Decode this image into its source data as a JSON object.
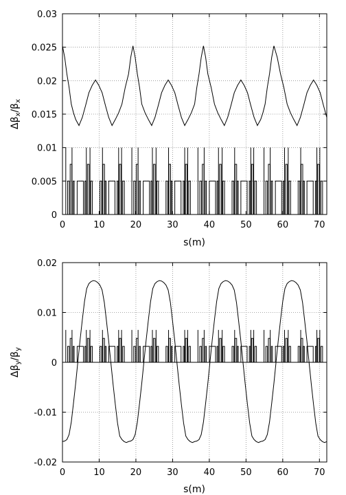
{
  "chart_data": [
    {
      "type": "line",
      "xlabel": "s(m)",
      "ylabel": "Δβx/βx",
      "ylabel_parts": {
        "main": "Δβ",
        "sub1": "x",
        "mid": "/β",
        "sub2": "x"
      },
      "xlim": [
        0,
        72
      ],
      "ylim": [
        0,
        0.03
      ],
      "grid": true,
      "xticks": [
        0,
        10,
        20,
        30,
        40,
        50,
        60,
        70
      ],
      "xtick_labels": [
        "0",
        "10",
        "20",
        "30",
        "40",
        "50",
        "60",
        "70"
      ],
      "yticks": [
        0,
        0.005,
        0.01,
        0.015,
        0.02,
        0.025,
        0.03
      ],
      "ytick_labels": [
        "0",
        "0.005",
        "0.01",
        "0.015",
        "0.02",
        "0.025",
        "0.03"
      ],
      "series": [
        {
          "style": "solid-line",
          "x": [
            0,
            0.6,
            1.2,
            1.8,
            2.4,
            3.0,
            3.6,
            4.5,
            5.4,
            6.3,
            7.2,
            8.1,
            9.0,
            9.9,
            10.8,
            11.7,
            12.6,
            13.5,
            14.4,
            15.3,
            16.2,
            17.1,
            18.0,
            18.6,
            19.2,
            19.8,
            20.4,
            21.0,
            21.6,
            22.5,
            23.4,
            24.3,
            25.2,
            26.1,
            27.0,
            27.9,
            28.8,
            29.7,
            30.6,
            31.5,
            32.4,
            33.3,
            34.2,
            35.1,
            36.0,
            36.6,
            37.2,
            37.8,
            38.4,
            39.0,
            39.6,
            40.5,
            41.4,
            42.3,
            43.2,
            44.1,
            45.0,
            45.9,
            46.8,
            47.7,
            48.6,
            49.5,
            50.4,
            51.3,
            52.2,
            53.1,
            54.0,
            54.6,
            55.2,
            55.8,
            56.4,
            57.0,
            57.6,
            58.5,
            59.4,
            60.3,
            61.2,
            62.1,
            63.0,
            63.9,
            64.8,
            65.7,
            66.6,
            67.5,
            68.4,
            69.3,
            70.2,
            71.1,
            72.0
          ],
          "y": [
            0.0252,
            0.0235,
            0.021,
            0.019,
            0.0165,
            0.0152,
            0.0142,
            0.0133,
            0.0145,
            0.0163,
            0.0182,
            0.0193,
            0.0201,
            0.0193,
            0.0182,
            0.0163,
            0.0145,
            0.0133,
            0.0142,
            0.0152,
            0.0165,
            0.019,
            0.021,
            0.0235,
            0.0252,
            0.0235,
            0.021,
            0.019,
            0.0165,
            0.0152,
            0.0142,
            0.0133,
            0.0145,
            0.0163,
            0.0182,
            0.0193,
            0.0201,
            0.0193,
            0.0182,
            0.0163,
            0.0145,
            0.0133,
            0.0142,
            0.0152,
            0.0165,
            0.019,
            0.021,
            0.0235,
            0.0252,
            0.0235,
            0.021,
            0.019,
            0.0165,
            0.0152,
            0.0142,
            0.0133,
            0.0145,
            0.0163,
            0.0182,
            0.0193,
            0.0201,
            0.0193,
            0.0182,
            0.0163,
            0.0145,
            0.0133,
            0.0142,
            0.0152,
            0.0165,
            0.019,
            0.021,
            0.0235,
            0.0252,
            0.0235,
            0.021,
            0.019,
            0.0165,
            0.0152,
            0.0142,
            0.0133,
            0.0145,
            0.0163,
            0.0182,
            0.0193,
            0.0201,
            0.0193,
            0.0182,
            0.0163,
            0.0145
          ]
        },
        {
          "style": "lattice-elements",
          "cell_length": 18,
          "cells": 4,
          "elements": [
            {
              "kind": "spike",
              "s": 0.9,
              "h": 0.01
            },
            {
              "kind": "box",
              "s": 1.4,
              "w": 0.45,
              "h": 0.005
            },
            {
              "kind": "box",
              "s": 2.1,
              "w": 0.45,
              "h": 0.0075
            },
            {
              "kind": "spike",
              "s": 2.6,
              "h": 0.01
            },
            {
              "kind": "box",
              "s": 2.9,
              "w": 0.3,
              "h": 0.005
            },
            {
              "kind": "box",
              "s": 4.0,
              "w": 1.7,
              "h": 0.005
            },
            {
              "kind": "box",
              "s": 6.1,
              "w": 0.3,
              "h": 0.005
            },
            {
              "kind": "spike",
              "s": 6.5,
              "h": 0.01
            },
            {
              "kind": "box",
              "s": 6.8,
              "w": 0.45,
              "h": 0.0075
            },
            {
              "kind": "spike",
              "s": 7.5,
              "h": 0.01
            },
            {
              "kind": "box",
              "s": 7.7,
              "w": 0.45,
              "h": 0.005
            },
            {
              "kind": "box",
              "s": 10.2,
              "w": 0.45,
              "h": 0.005
            },
            {
              "kind": "spike",
              "s": 10.9,
              "h": 0.01
            },
            {
              "kind": "box",
              "s": 11.0,
              "w": 0.45,
              "h": 0.0075
            },
            {
              "kind": "box",
              "s": 11.6,
              "w": 0.3,
              "h": 0.005
            },
            {
              "kind": "box",
              "s": 12.6,
              "w": 1.7,
              "h": 0.005
            },
            {
              "kind": "box",
              "s": 14.9,
              "w": 0.3,
              "h": 0.005
            },
            {
              "kind": "spike",
              "s": 15.3,
              "h": 0.01
            },
            {
              "kind": "box",
              "s": 15.5,
              "w": 0.45,
              "h": 0.0075
            },
            {
              "kind": "spike",
              "s": 16.1,
              "h": 0.01
            },
            {
              "kind": "box",
              "s": 16.4,
              "w": 0.45,
              "h": 0.005
            }
          ]
        }
      ]
    },
    {
      "type": "line",
      "xlabel": "s(m)",
      "ylabel": "Δβy/βy",
      "ylabel_parts": {
        "main": "Δβ",
        "sub1": "y",
        "mid": "/β",
        "sub2": "y"
      },
      "xlim": [
        0,
        72
      ],
      "ylim": [
        -0.02,
        0.02
      ],
      "grid": true,
      "xticks": [
        0,
        10,
        20,
        30,
        40,
        50,
        60,
        70
      ],
      "xtick_labels": [
        "0",
        "10",
        "20",
        "30",
        "40",
        "50",
        "60",
        "70"
      ],
      "yticks": [
        -0.02,
        -0.01,
        0,
        0.01,
        0.02
      ],
      "ytick_labels": [
        "-0.02",
        "-0.01",
        "0",
        "0.01",
        "0.02"
      ],
      "series": [
        {
          "style": "solid-line",
          "x": [
            0,
            0.6,
            1.2,
            1.8,
            2.4,
            3.0,
            3.6,
            4.2,
            4.8,
            5.4,
            6.0,
            6.6,
            7.2,
            7.8,
            8.4,
            9.0,
            9.6,
            10.2,
            10.8,
            11.4,
            12.0,
            12.6,
            13.2,
            13.8,
            14.4,
            15.0,
            15.6,
            16.2,
            16.8,
            17.4,
            18.0,
            18.6,
            19.2,
            19.8,
            20.4,
            21.0,
            21.6,
            22.2,
            22.8,
            23.4,
            24.0,
            24.6,
            25.2,
            25.8,
            26.4,
            27.0,
            27.6,
            28.2,
            28.8,
            29.4,
            30.0,
            30.6,
            31.2,
            31.8,
            32.4,
            33.0,
            33.6,
            34.2,
            34.8,
            35.4,
            36.0,
            36.6,
            37.2,
            37.8,
            38.4,
            39.0,
            39.6,
            40.2,
            40.8,
            41.4,
            42.0,
            42.6,
            43.2,
            43.8,
            44.4,
            45.0,
            45.6,
            46.2,
            46.8,
            47.4,
            48.0,
            48.6,
            49.2,
            49.8,
            50.4,
            51.0,
            51.6,
            52.2,
            52.8,
            53.4,
            54.0,
            54.6,
            55.2,
            55.8,
            56.4,
            57.0,
            57.6,
            58.2,
            58.8,
            59.4,
            60.0,
            60.6,
            61.2,
            61.8,
            62.4,
            63.0,
            63.6,
            64.2,
            64.8,
            65.4,
            66.0,
            66.6,
            67.2,
            67.8,
            68.4,
            69.0,
            69.6,
            70.2,
            70.8,
            71.4,
            72.0
          ],
          "y": [
            -0.0159,
            -0.0158,
            -0.0155,
            -0.0145,
            -0.012,
            -0.0082,
            -0.0042,
            0.0002,
            0.0045,
            0.0085,
            0.0122,
            0.0148,
            0.0158,
            0.0162,
            0.0164,
            0.0163,
            0.016,
            0.0155,
            0.0145,
            0.012,
            0.0082,
            0.0042,
            -0.0002,
            -0.0045,
            -0.0085,
            -0.0122,
            -0.0148,
            -0.0155,
            -0.0159,
            -0.0161,
            -0.0159,
            -0.0158,
            -0.0155,
            -0.0145,
            -0.012,
            -0.0082,
            -0.0042,
            0.0002,
            0.0045,
            0.0085,
            0.0122,
            0.0148,
            0.0158,
            0.0162,
            0.0164,
            0.0163,
            0.016,
            0.0155,
            0.0145,
            0.012,
            0.0082,
            0.0042,
            -0.0002,
            -0.0045,
            -0.0085,
            -0.0122,
            -0.0148,
            -0.0155,
            -0.0159,
            -0.0161,
            -0.0159,
            -0.0158,
            -0.0155,
            -0.0145,
            -0.012,
            -0.0082,
            -0.0042,
            0.0002,
            0.0045,
            0.0085,
            0.0122,
            0.0148,
            0.0158,
            0.0162,
            0.0164,
            0.0163,
            0.016,
            0.0155,
            0.0145,
            0.012,
            0.0082,
            0.0042,
            -0.0002,
            -0.0045,
            -0.0085,
            -0.0122,
            -0.0148,
            -0.0155,
            -0.0159,
            -0.0161,
            -0.0159,
            -0.0158,
            -0.0155,
            -0.0145,
            -0.012,
            -0.0082,
            -0.0042,
            0.0002,
            0.0045,
            0.0085,
            0.0122,
            0.0148,
            0.0158,
            0.0162,
            0.0164,
            0.0163,
            0.016,
            0.0155,
            0.0145,
            0.012,
            0.0082,
            0.0042,
            -0.0002,
            -0.0045,
            -0.0085,
            -0.0122,
            -0.0148,
            -0.0155,
            -0.0159,
            -0.0161,
            -0.0159
          ]
        },
        {
          "style": "lattice-elements",
          "cell_length": 18,
          "cells": 4,
          "elements": [
            {
              "kind": "spike",
              "s": 0.9,
              "h": 0.0065
            },
            {
              "kind": "box",
              "s": 1.4,
              "w": 0.45,
              "h": 0.0032
            },
            {
              "kind": "box",
              "s": 2.1,
              "w": 0.45,
              "h": 0.0048
            },
            {
              "kind": "spike",
              "s": 2.6,
              "h": 0.0065
            },
            {
              "kind": "box",
              "s": 2.9,
              "w": 0.3,
              "h": 0.0032
            },
            {
              "kind": "box",
              "s": 4.0,
              "w": 1.7,
              "h": 0.0032
            },
            {
              "kind": "box",
              "s": 6.1,
              "w": 0.3,
              "h": 0.0032
            },
            {
              "kind": "spike",
              "s": 6.5,
              "h": 0.0065
            },
            {
              "kind": "box",
              "s": 6.8,
              "w": 0.45,
              "h": 0.0048
            },
            {
              "kind": "spike",
              "s": 7.5,
              "h": 0.0065
            },
            {
              "kind": "box",
              "s": 7.7,
              "w": 0.45,
              "h": 0.0032
            },
            {
              "kind": "box",
              "s": 10.2,
              "w": 0.45,
              "h": 0.0032
            },
            {
              "kind": "spike",
              "s": 10.9,
              "h": 0.0065
            },
            {
              "kind": "box",
              "s": 11.0,
              "w": 0.45,
              "h": 0.0048
            },
            {
              "kind": "box",
              "s": 11.6,
              "w": 0.3,
              "h": 0.0032
            },
            {
              "kind": "box",
              "s": 12.6,
              "w": 1.7,
              "h": 0.0032
            },
            {
              "kind": "box",
              "s": 14.9,
              "w": 0.3,
              "h": 0.0032
            },
            {
              "kind": "spike",
              "s": 15.3,
              "h": 0.0065
            },
            {
              "kind": "box",
              "s": 15.5,
              "w": 0.45,
              "h": 0.0048
            },
            {
              "kind": "spike",
              "s": 16.1,
              "h": 0.0065
            },
            {
              "kind": "box",
              "s": 16.4,
              "w": 0.45,
              "h": 0.0032
            }
          ]
        }
      ]
    }
  ]
}
